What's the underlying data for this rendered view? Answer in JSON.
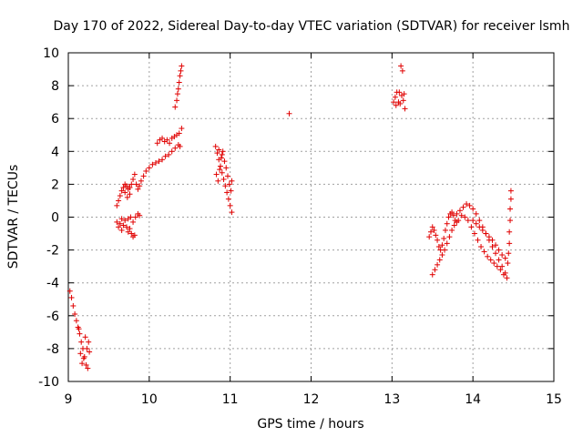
{
  "chart_data": {
    "type": "scatter",
    "title": "Day 170 of 2022, Sidereal Day-to-day VTEC variation (SDTVAR) for receiver lsmh",
    "xlabel": "GPS time / hours",
    "ylabel": "SDTVAR / TECUs",
    "xlim": [
      9,
      15
    ],
    "ylim": [
      -10,
      10
    ],
    "xticks": [
      "9",
      "10",
      "11",
      "12",
      "13",
      "14",
      "15"
    ],
    "yticks": [
      "-10",
      "-8",
      "-6",
      "-4",
      "-2",
      "0",
      "2",
      "4",
      "6",
      "8",
      "10"
    ],
    "grid": true,
    "marker": "+",
    "color": "#e00000",
    "series": [
      {
        "name": "SDTVAR",
        "points": [
          [
            9.02,
            -4.5
          ],
          [
            9.04,
            -4.9
          ],
          [
            9.06,
            -5.4
          ],
          [
            9.08,
            -5.9
          ],
          [
            9.1,
            -6.3
          ],
          [
            9.12,
            -6.7
          ],
          [
            9.14,
            -7.1
          ],
          [
            9.16,
            -7.6
          ],
          [
            9.18,
            -8.0
          ],
          [
            9.2,
            -8.5
          ],
          [
            9.22,
            -9.0
          ],
          [
            9.24,
            -9.2
          ],
          [
            9.15,
            -8.3
          ],
          [
            9.17,
            -8.9
          ],
          [
            9.19,
            -8.6
          ],
          [
            9.23,
            -8.0
          ],
          [
            9.25,
            -7.6
          ],
          [
            9.26,
            -8.2
          ],
          [
            9.21,
            -7.3
          ],
          [
            9.13,
            -6.8
          ],
          [
            9.6,
            0.7
          ],
          [
            9.62,
            1.0
          ],
          [
            9.64,
            1.3
          ],
          [
            9.66,
            1.6
          ],
          [
            9.68,
            1.8
          ],
          [
            9.7,
            2.0
          ],
          [
            9.72,
            1.9
          ],
          [
            9.74,
            1.7
          ],
          [
            9.76,
            1.8
          ],
          [
            9.78,
            2.0
          ],
          [
            9.8,
            2.3
          ],
          [
            9.82,
            2.6
          ],
          [
            9.84,
            2.0
          ],
          [
            9.86,
            1.7
          ],
          [
            9.88,
            1.9
          ],
          [
            9.7,
            1.5
          ],
          [
            9.73,
            1.2
          ],
          [
            9.76,
            1.4
          ],
          [
            9.6,
            -0.3
          ],
          [
            9.62,
            -0.6
          ],
          [
            9.64,
            -0.4
          ],
          [
            9.66,
            -0.8
          ],
          [
            9.68,
            -0.5
          ],
          [
            9.7,
            -0.2
          ],
          [
            9.72,
            -0.6
          ],
          [
            9.74,
            -0.9
          ],
          [
            9.76,
            -0.7
          ],
          [
            9.78,
            -1.0
          ],
          [
            9.8,
            -1.2
          ],
          [
            9.82,
            -1.1
          ],
          [
            9.74,
            -0.1
          ],
          [
            9.77,
            0.0
          ],
          [
            9.8,
            -0.3
          ],
          [
            9.83,
            0.0
          ],
          [
            9.86,
            0.2
          ],
          [
            9.88,
            0.1
          ],
          [
            9.66,
            -0.1
          ],
          [
            9.9,
            2.2
          ],
          [
            9.93,
            2.5
          ],
          [
            9.96,
            2.8
          ],
          [
            10.0,
            3.0
          ],
          [
            10.04,
            3.2
          ],
          [
            10.08,
            3.3
          ],
          [
            10.12,
            3.4
          ],
          [
            10.16,
            3.5
          ],
          [
            10.2,
            3.7
          ],
          [
            10.24,
            3.8
          ],
          [
            10.28,
            4.0
          ],
          [
            10.32,
            4.2
          ],
          [
            10.36,
            4.4
          ],
          [
            10.38,
            4.3
          ],
          [
            10.1,
            4.5
          ],
          [
            10.13,
            4.7
          ],
          [
            10.16,
            4.8
          ],
          [
            10.19,
            4.6
          ],
          [
            10.22,
            4.7
          ],
          [
            10.25,
            4.5
          ],
          [
            10.28,
            4.8
          ],
          [
            10.31,
            4.9
          ],
          [
            10.34,
            5.0
          ],
          [
            10.37,
            5.1
          ],
          [
            10.4,
            5.4
          ],
          [
            10.32,
            6.7
          ],
          [
            10.34,
            7.1
          ],
          [
            10.35,
            7.5
          ],
          [
            10.36,
            7.8
          ],
          [
            10.37,
            8.2
          ],
          [
            10.38,
            8.6
          ],
          [
            10.39,
            8.9
          ],
          [
            10.4,
            9.2
          ],
          [
            10.82,
            4.3
          ],
          [
            10.84,
            3.9
          ],
          [
            10.86,
            3.5
          ],
          [
            10.88,
            3.1
          ],
          [
            10.9,
            2.7
          ],
          [
            10.92,
            2.3
          ],
          [
            10.94,
            1.9
          ],
          [
            10.96,
            1.5
          ],
          [
            10.98,
            1.1
          ],
          [
            11.0,
            0.7
          ],
          [
            11.02,
            0.3
          ],
          [
            10.83,
            2.6
          ],
          [
            10.85,
            2.2
          ],
          [
            10.87,
            2.9
          ],
          [
            10.89,
            3.6
          ],
          [
            10.91,
            4.0
          ],
          [
            10.93,
            3.4
          ],
          [
            10.95,
            3.0
          ],
          [
            10.97,
            2.5
          ],
          [
            10.99,
            2.0
          ],
          [
            11.01,
            1.6
          ],
          [
            11.02,
            2.2
          ],
          [
            10.86,
            4.1
          ],
          [
            10.9,
            3.8
          ],
          [
            11.73,
            6.3
          ],
          [
            13.02,
            7.0
          ],
          [
            13.04,
            7.3
          ],
          [
            13.06,
            7.6
          ],
          [
            13.08,
            7.0
          ],
          [
            13.1,
            6.9
          ],
          [
            13.12,
            7.4
          ],
          [
            13.14,
            7.1
          ],
          [
            13.16,
            6.6
          ],
          [
            13.05,
            6.8
          ],
          [
            13.11,
            9.2
          ],
          [
            13.13,
            8.9
          ],
          [
            13.15,
            7.5
          ],
          [
            13.09,
            7.6
          ],
          [
            13.46,
            -1.2
          ],
          [
            13.48,
            -0.9
          ],
          [
            13.5,
            -0.6
          ],
          [
            13.52,
            -0.8
          ],
          [
            13.54,
            -1.1
          ],
          [
            13.56,
            -1.4
          ],
          [
            13.58,
            -1.8
          ],
          [
            13.6,
            -2.0
          ],
          [
            13.62,
            -1.7
          ],
          [
            13.64,
            -1.3
          ],
          [
            13.66,
            -0.8
          ],
          [
            13.68,
            -0.4
          ],
          [
            13.7,
            0.0
          ],
          [
            13.72,
            0.2
          ],
          [
            13.74,
            0.3
          ],
          [
            13.76,
            0.1
          ],
          [
            13.78,
            -0.2
          ],
          [
            13.5,
            -3.5
          ],
          [
            13.53,
            -3.2
          ],
          [
            13.56,
            -2.9
          ],
          [
            13.59,
            -2.6
          ],
          [
            13.62,
            -2.3
          ],
          [
            13.65,
            -2.0
          ],
          [
            13.68,
            -1.6
          ],
          [
            13.71,
            -1.2
          ],
          [
            13.74,
            -0.8
          ],
          [
            13.77,
            -0.5
          ],
          [
            13.8,
            -0.3
          ],
          [
            13.8,
            0.2
          ],
          [
            13.84,
            0.4
          ],
          [
            13.88,
            0.6
          ],
          [
            13.92,
            0.8
          ],
          [
            13.96,
            0.7
          ],
          [
            14.0,
            0.5
          ],
          [
            14.04,
            0.2
          ],
          [
            14.08,
            -0.2
          ],
          [
            14.12,
            -0.6
          ],
          [
            14.16,
            -1.0
          ],
          [
            14.2,
            -1.4
          ],
          [
            14.24,
            -1.8
          ],
          [
            14.28,
            -2.2
          ],
          [
            14.32,
            -2.6
          ],
          [
            14.36,
            -3.0
          ],
          [
            14.4,
            -3.4
          ],
          [
            14.42,
            -3.7
          ],
          [
            13.82,
            -0.2
          ],
          [
            13.86,
            0.1
          ],
          [
            13.9,
            0.0
          ],
          [
            13.94,
            -0.2
          ],
          [
            13.98,
            -0.6
          ],
          [
            14.02,
            -1.0
          ],
          [
            14.06,
            -1.4
          ],
          [
            14.1,
            -1.8
          ],
          [
            14.14,
            -2.1
          ],
          [
            14.18,
            -2.4
          ],
          [
            14.22,
            -2.6
          ],
          [
            14.26,
            -2.8
          ],
          [
            14.3,
            -3.0
          ],
          [
            14.34,
            -3.2
          ],
          [
            14.38,
            -3.5
          ],
          [
            14.0,
            -0.2
          ],
          [
            14.04,
            -0.4
          ],
          [
            14.08,
            -0.6
          ],
          [
            14.12,
            -0.8
          ],
          [
            14.16,
            -1.0
          ],
          [
            14.2,
            -1.2
          ],
          [
            14.24,
            -1.4
          ],
          [
            14.28,
            -1.7
          ],
          [
            14.32,
            -2.0
          ],
          [
            14.36,
            -2.3
          ],
          [
            14.4,
            -2.5
          ],
          [
            14.43,
            -2.8
          ],
          [
            14.44,
            -2.2
          ],
          [
            14.45,
            -1.6
          ],
          [
            14.45,
            -0.9
          ],
          [
            14.46,
            -0.2
          ],
          [
            14.46,
            0.5
          ],
          [
            14.47,
            1.1
          ],
          [
            14.47,
            1.6
          ]
        ]
      }
    ]
  }
}
